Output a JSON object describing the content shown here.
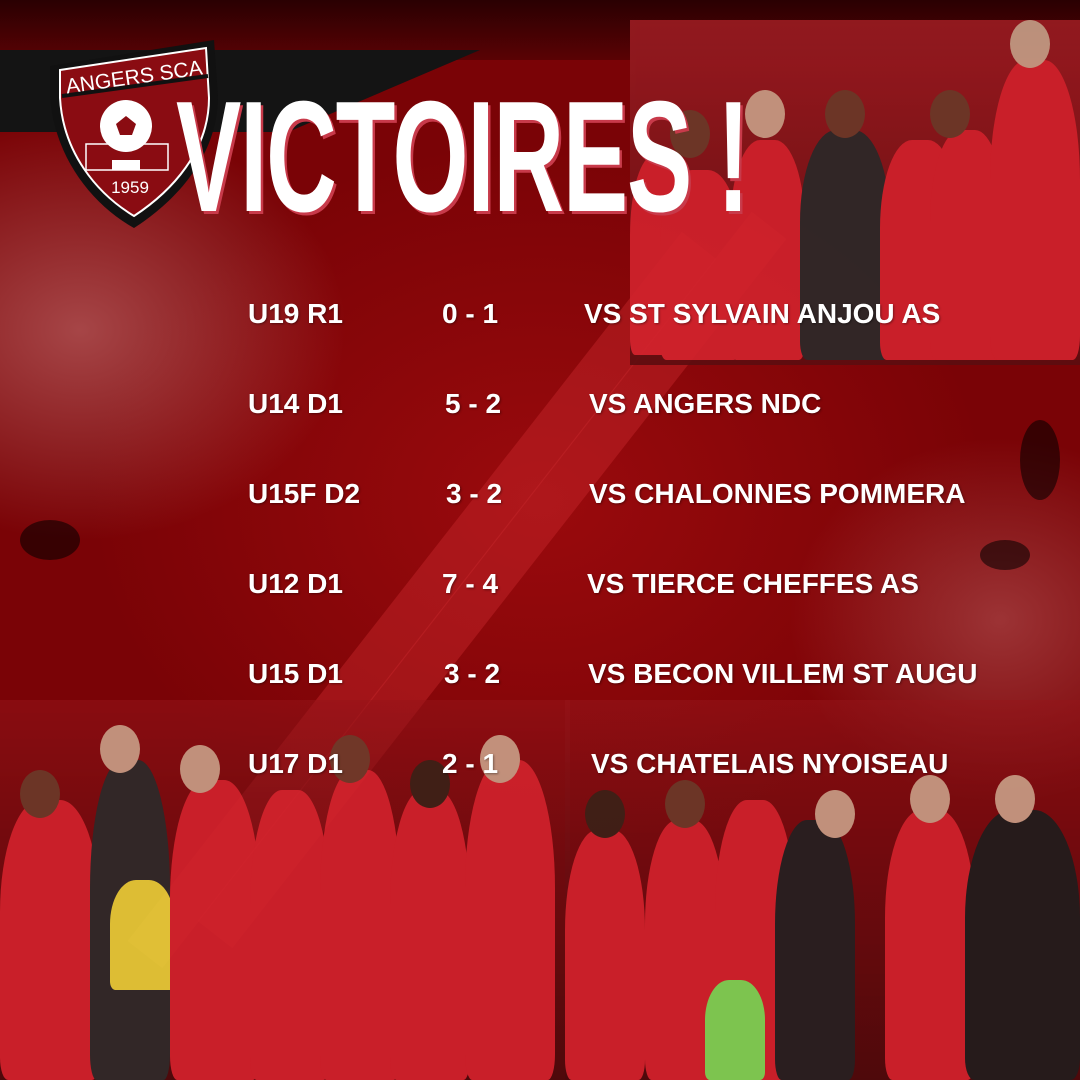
{
  "logo": {
    "name": "ANGERS SCA",
    "year": "1959"
  },
  "title": "VICTOIRES !",
  "colors": {
    "background": "#8c0508",
    "text": "#ffffff",
    "title_shadow": "#c83a4a",
    "band": "#141414"
  },
  "results": [
    {
      "team": "U19 R1",
      "score": "0 - 1",
      "opponent": "VS ST SYLVAIN ANJOU AS"
    },
    {
      "team": "U14 D1",
      "score": "5 - 2",
      "opponent": "VS ANGERS NDC"
    },
    {
      "team": "U15F D2",
      "score": "3 - 2",
      "opponent": "VS CHALONNES POMMERA"
    },
    {
      "team": "U12 D1",
      "score": "7 - 4",
      "opponent": "VS TIERCE CHEFFES AS"
    },
    {
      "team": "U15 D1",
      "score": "3 - 2",
      "opponent": "VS BECON VILLEM ST AUGU"
    },
    {
      "team": "U17 D1",
      "score": "2 - 1",
      "opponent": "VS CHATELAIS NYOISEAU"
    }
  ]
}
